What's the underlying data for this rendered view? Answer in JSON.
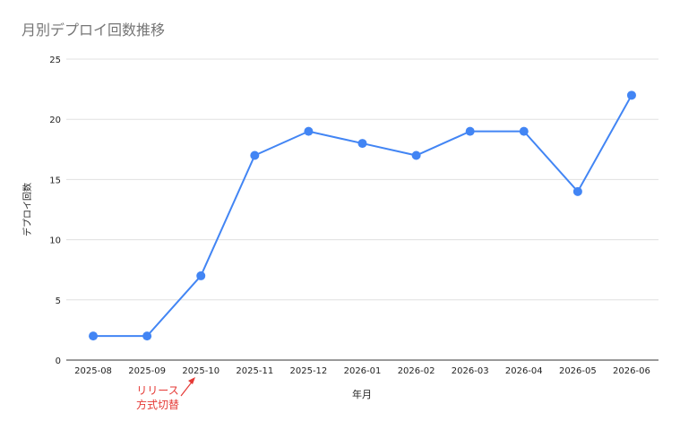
{
  "chart_data": {
    "type": "line",
    "title": "月別デプロイ回数推移",
    "xlabel": "年月",
    "ylabel": "デプロイ回数",
    "categories": [
      "2025-08",
      "2025-09",
      "2025-10",
      "2025-11",
      "2025-12",
      "2026-01",
      "2026-02",
      "2026-03",
      "2026-04",
      "2026-05",
      "2026-06"
    ],
    "series": [
      {
        "values": [
          2,
          2,
          7,
          17,
          19,
          18,
          17,
          19,
          19,
          14,
          22
        ]
      }
    ],
    "ylim": [
      0,
      25
    ],
    "yticks": [
      0,
      5,
      10,
      15,
      20,
      25
    ],
    "grid": true,
    "annotation": {
      "lines": [
        "リリース",
        "方式切替"
      ],
      "category": "2025-10",
      "color": "#e53935"
    },
    "colors": {
      "series": "#4285f4",
      "title": "#757575",
      "grid": "#e0e0e0",
      "axis": "#333333"
    }
  }
}
